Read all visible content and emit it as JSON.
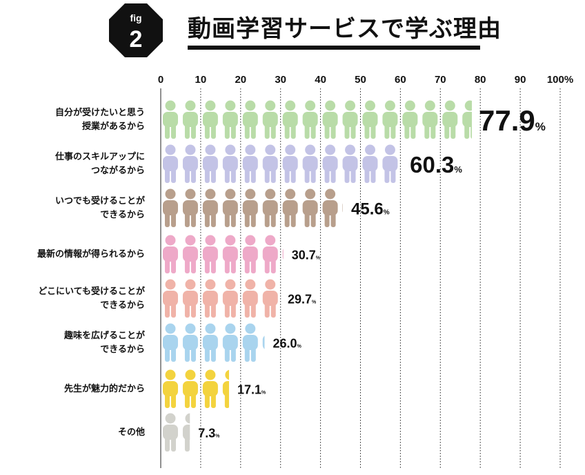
{
  "badge": {
    "prefix": "fig",
    "number": "2"
  },
  "title": "動画学習サービスで学ぶ理由",
  "chart_data": {
    "type": "bar",
    "orientation": "horizontal",
    "xlim": [
      0,
      100
    ],
    "x_ticks": [
      "0",
      "10",
      "20",
      "30",
      "40",
      "50",
      "60",
      "70",
      "80",
      "90",
      "100%"
    ],
    "grid": true,
    "unit": "%",
    "categories": [
      [
        "自分が受けたいと思う",
        "授業があるから"
      ],
      [
        "仕事のスキルアップに",
        "つながるから"
      ],
      [
        "いつでも受けることが",
        "できるから"
      ],
      [
        "最新の情報が得られるから"
      ],
      [
        "どこにいても受けることが",
        "できるから"
      ],
      [
        "趣味を広げることが",
        "できるから"
      ],
      [
        "先生が魅力的だから"
      ],
      [
        "その他"
      ]
    ],
    "values": [
      77.9,
      60.3,
      45.6,
      30.7,
      29.7,
      26.0,
      17.1,
      7.3
    ],
    "value_labels": [
      "77.9",
      "60.3",
      "45.6",
      "30.7",
      "29.7",
      "26.0",
      "17.1",
      "7.3"
    ],
    "colors": [
      "#b9dca8",
      "#c3c3e6",
      "#b89f8c",
      "#eea9c8",
      "#f0b3a8",
      "#a9d4ee",
      "#f3d33e",
      "#d2d2cc"
    ]
  }
}
